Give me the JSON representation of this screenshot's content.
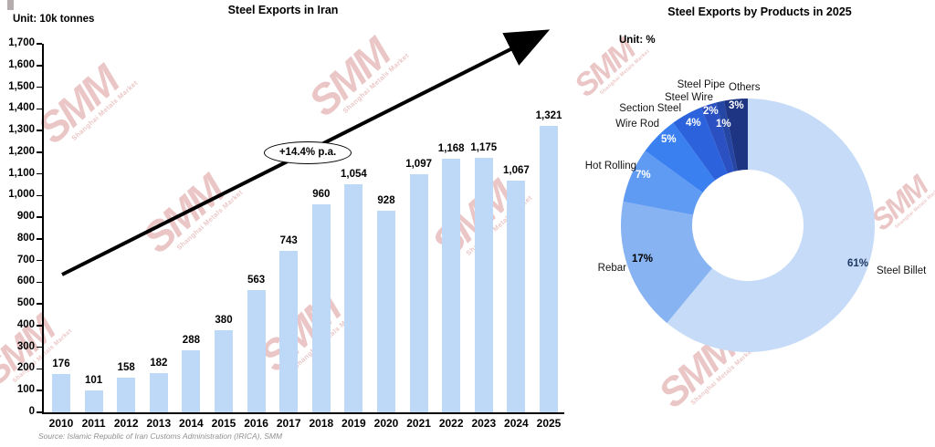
{
  "page": {
    "source_note": "Source: Islamic Republic of Iran Customs Administration (IRICA), SMM"
  },
  "watermark": {
    "label": "SMM",
    "sublabel": "Shanghai Metals Market",
    "color": "#d98f8f"
  },
  "chart_data": [
    {
      "type": "bar",
      "title": "Steel Exports in Iran",
      "unit_label": "Unit: 10k tonnes",
      "trend_annotation": "+14.4% p.a.",
      "bar_color": "#bed8f7",
      "categories": [
        "2010",
        "2011",
        "2012",
        "2013",
        "2014",
        "2015",
        "2016",
        "2017",
        "2018",
        "2019",
        "2020",
        "2021",
        "2022",
        "2023",
        "2024",
        "2025"
      ],
      "values": [
        176,
        101,
        158,
        182,
        288,
        380,
        563,
        743,
        960,
        1054,
        928,
        1097,
        1168,
        1175,
        1067,
        1321
      ],
      "value_labels": [
        "176",
        "101",
        "158",
        "182",
        "288",
        "380",
        "563",
        "743",
        "960",
        "1,054",
        "928",
        "1,097",
        "1,168",
        "1,175",
        "1,067",
        "1,321"
      ],
      "xlabel": "",
      "ylabel": "",
      "ylim": [
        0,
        1700
      ],
      "ytick_step": 100,
      "ytick_labels": [
        "0",
        "100",
        "200",
        "300",
        "400",
        "500",
        "600",
        "700",
        "800",
        "900",
        "1,000",
        "1,100",
        "1,200",
        "1,300",
        "1,400",
        "1,500",
        "1,600",
        "1,700"
      ],
      "grid": false,
      "legend": false
    },
    {
      "type": "pie",
      "title": "Steel Exports by Products in 2025",
      "unit_label": "Unit: %",
      "slices": [
        {
          "label": "Steel Billet",
          "value": 61,
          "pct_label": "61%",
          "color": "#c6dbf7"
        },
        {
          "label": "Rebar",
          "value": 17,
          "pct_label": "17%",
          "color": "#87b3f2"
        },
        {
          "label": "Hot Rolling",
          "value": 7,
          "pct_label": "7%",
          "color": "#5f9bf3"
        },
        {
          "label": "Wire Rod",
          "value": 5,
          "pct_label": "5%",
          "color": "#3b80f0"
        },
        {
          "label": "Section Steel",
          "value": 4,
          "pct_label": "4%",
          "color": "#2c63dd"
        },
        {
          "label": "Steel Wire",
          "value": 2,
          "pct_label": "2%",
          "color": "#2a50c2"
        },
        {
          "label": "Steel Pipe",
          "value": 1,
          "pct_label": "1%",
          "color": "#2646a4"
        },
        {
          "label": "Others",
          "value": 3,
          "pct_label": "3%",
          "color": "#1d3583"
        }
      ]
    }
  ]
}
